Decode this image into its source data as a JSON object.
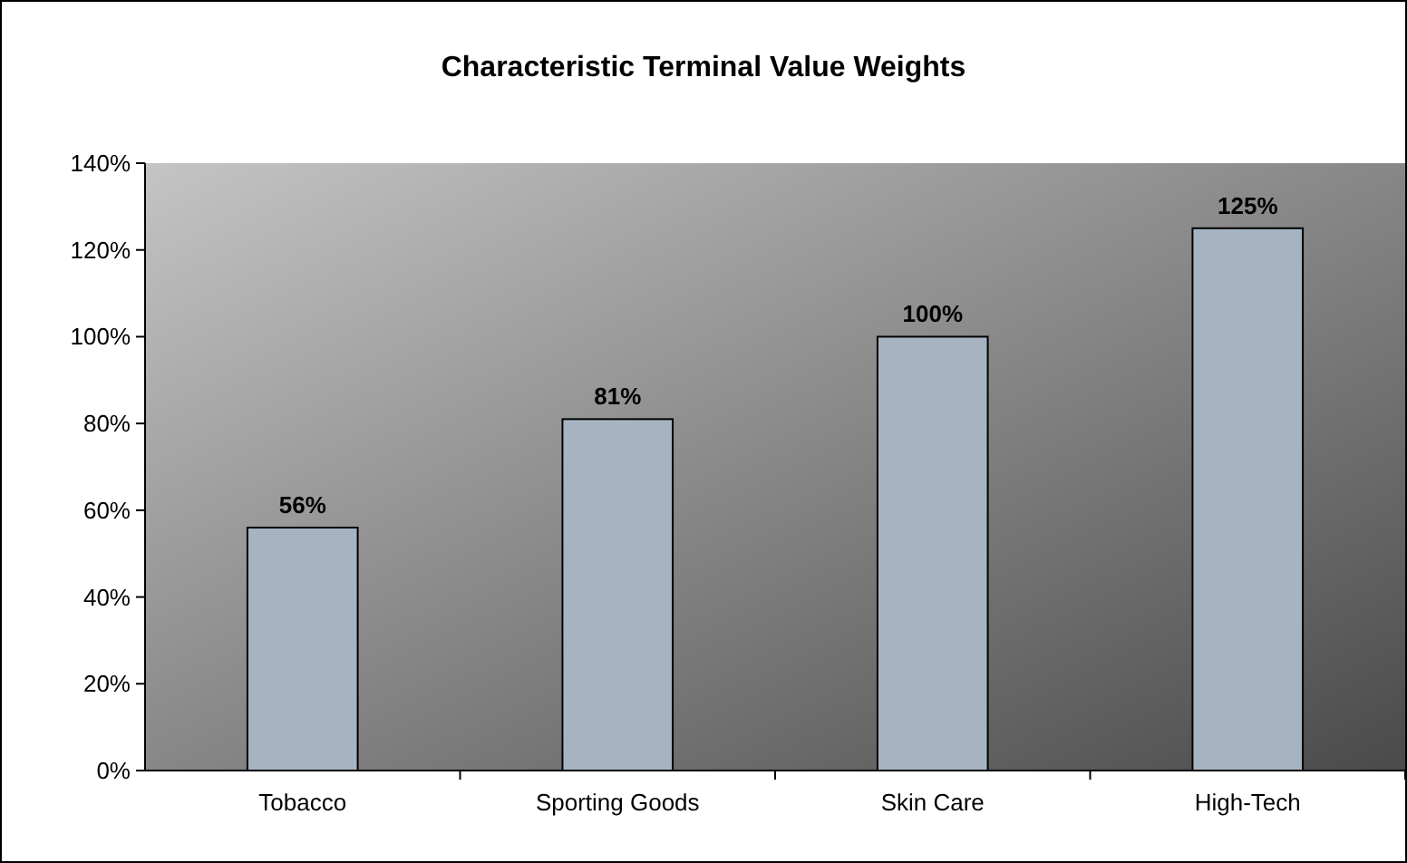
{
  "chart_data": {
    "type": "bar",
    "title": "Characteristic Terminal Value Weights",
    "categories": [
      "Tobacco",
      "Sporting Goods",
      "Skin Care",
      "High-Tech"
    ],
    "values": [
      56,
      81,
      100,
      125
    ],
    "color": "#a6b4c2",
    "value_labels": [
      "56%",
      "81%",
      "100%",
      "125%"
    ],
    "ylim": [
      0,
      140
    ],
    "yticks": [
      {
        "value": 0,
        "label": "0%"
      },
      {
        "value": 20,
        "label": "20%"
      },
      {
        "value": 40,
        "label": "40%"
      },
      {
        "value": 60,
        "label": "60%"
      },
      {
        "value": 80,
        "label": "80%"
      },
      {
        "value": 100,
        "label": "100%"
      },
      {
        "value": 120,
        "label": "120%"
      },
      {
        "value": 140,
        "label": "140%"
      }
    ],
    "grid": false
  }
}
